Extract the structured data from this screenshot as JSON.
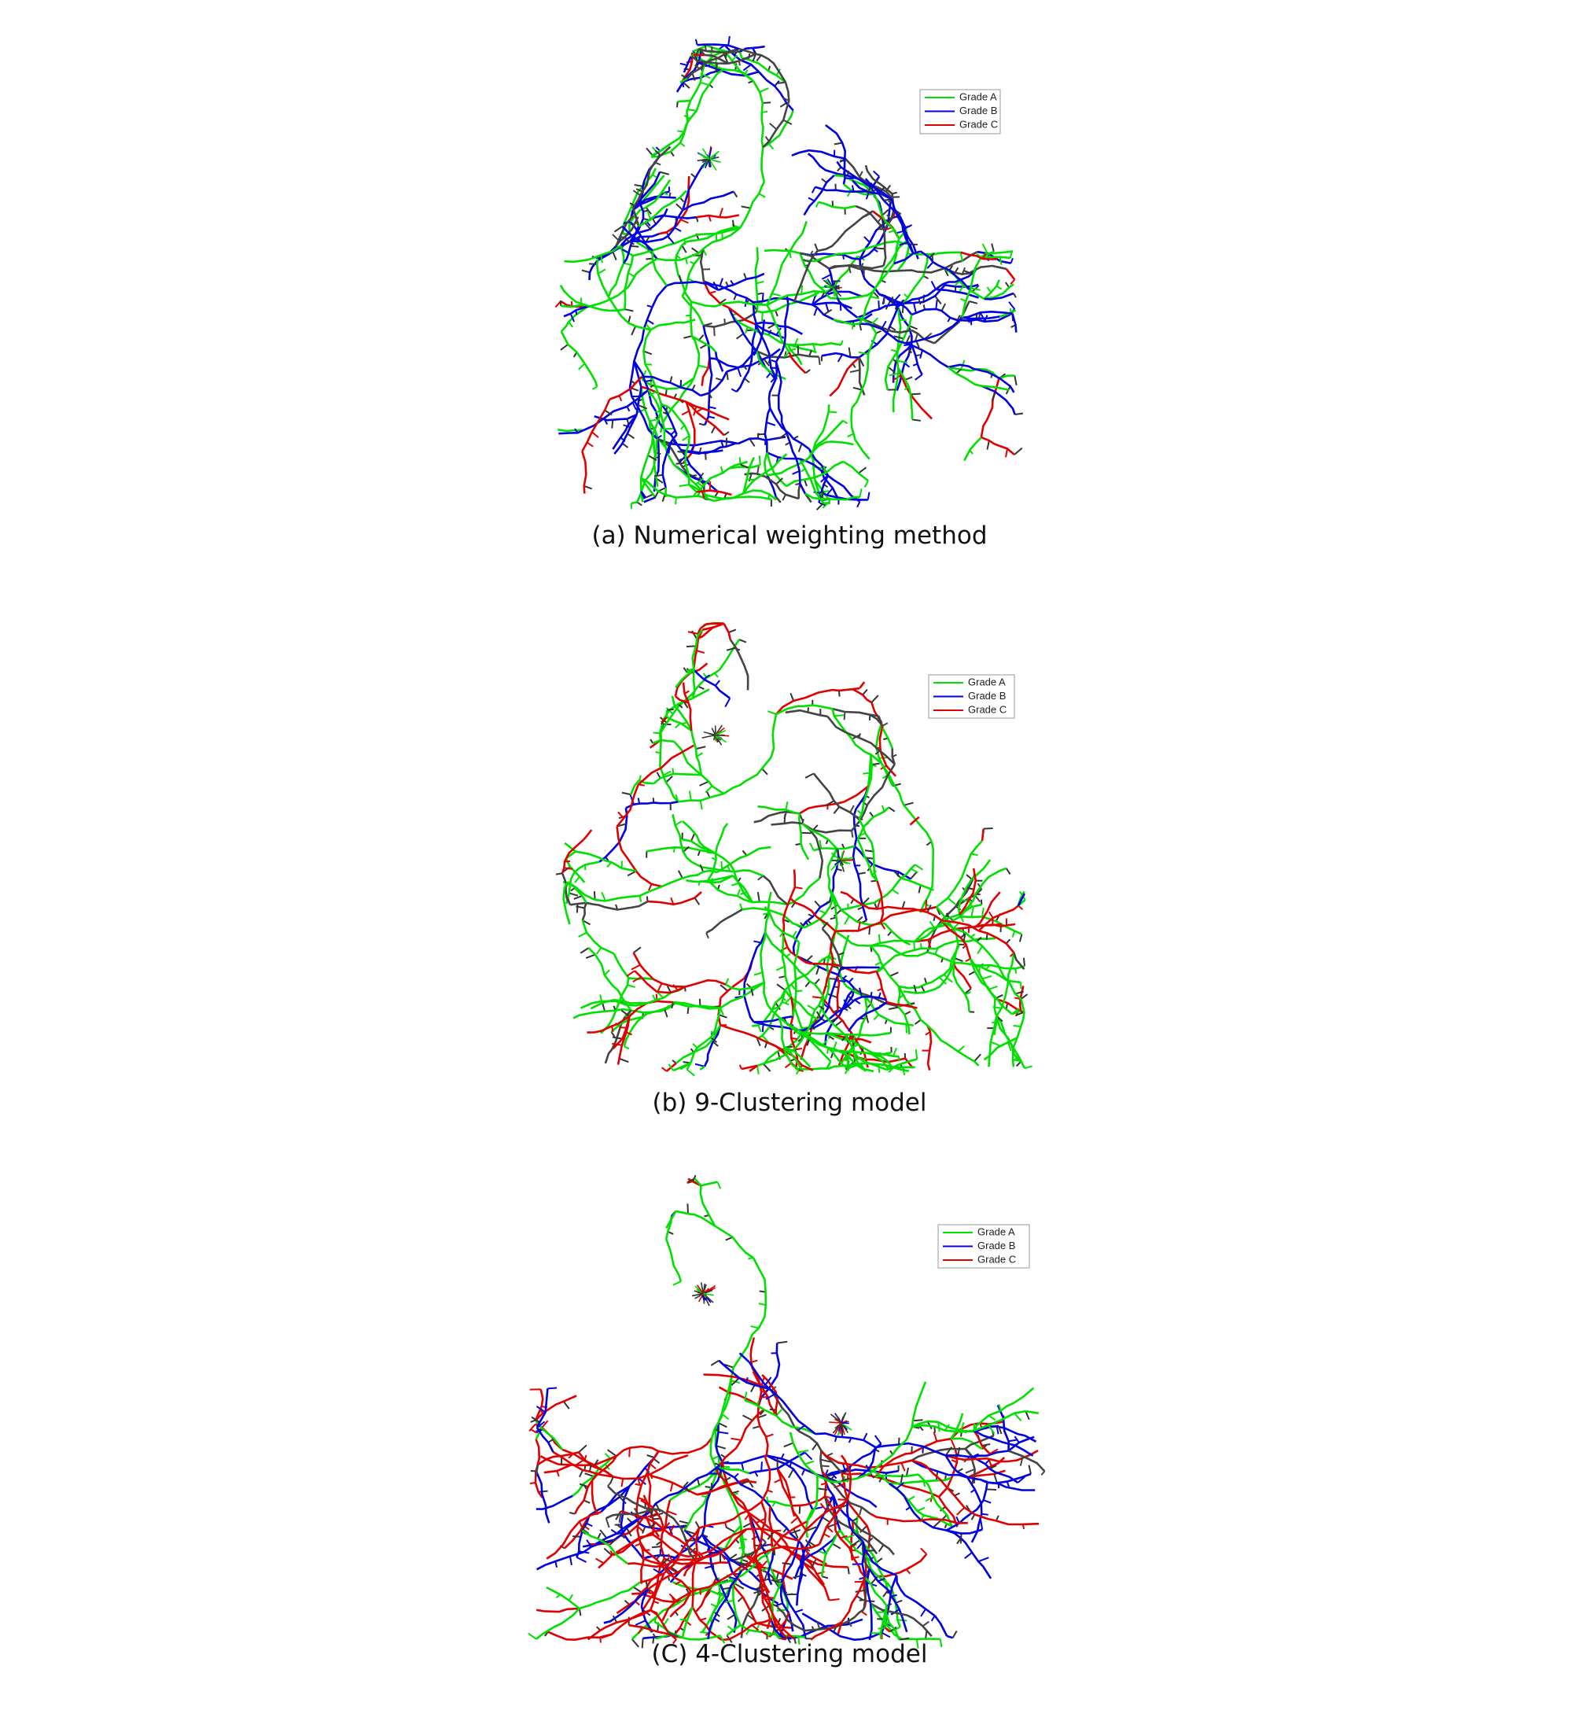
{
  "panels": [
    {
      "caption": "(a) Numerical weighting method",
      "legend": [
        {
          "name": "Grade A",
          "color": "#00e000"
        },
        {
          "name": "Grade B",
          "color": "#0000e0"
        },
        {
          "name": "Grade C",
          "color": "#e00000"
        }
      ]
    },
    {
      "caption": "(b) 9-Clustering model",
      "legend": [
        {
          "name": "Grade A",
          "color": "#00e000"
        },
        {
          "name": "Grade B",
          "color": "#0000e0"
        },
        {
          "name": "Grade C",
          "color": "#e00000"
        }
      ]
    },
    {
      "caption": "(C) 4-Clustering model",
      "legend": [
        {
          "name": "Grade A",
          "color": "#00e000"
        },
        {
          "name": "Grade B",
          "color": "#0000e0"
        },
        {
          "name": "Grade C",
          "color": "#e00000"
        }
      ]
    }
  ]
}
